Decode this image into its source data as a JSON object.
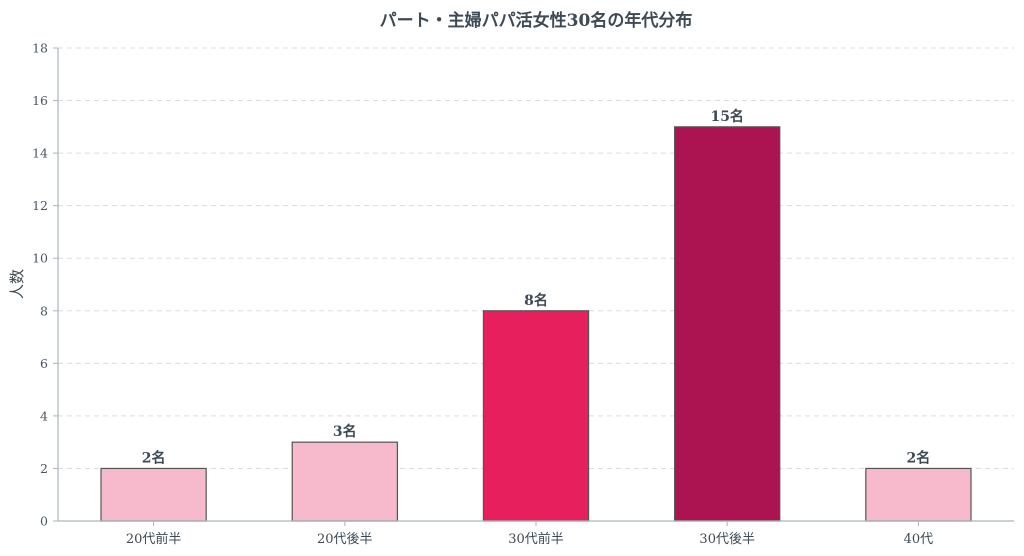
{
  "chart_data": {
    "type": "bar",
    "title": "パート・主婦パパ活女性30名の年代分布",
    "xlabel": "",
    "ylabel": "人数",
    "categories": [
      "20代前半",
      "20代後半",
      "30代前半",
      "30代後半",
      "40代"
    ],
    "values": [
      2,
      3,
      8,
      15,
      2
    ],
    "data_labels": [
      "2名",
      "3名",
      "8名",
      "15名",
      "2名"
    ],
    "colors": [
      "#f7bacd",
      "#f7bacd",
      "#e81f5d",
      "#ab1450",
      "#f7bacd"
    ],
    "ylim": [
      0,
      18
    ],
    "yticks": [
      0,
      2,
      4,
      6,
      8,
      10,
      12,
      14,
      16,
      18
    ],
    "grid": true,
    "legend": "none"
  }
}
